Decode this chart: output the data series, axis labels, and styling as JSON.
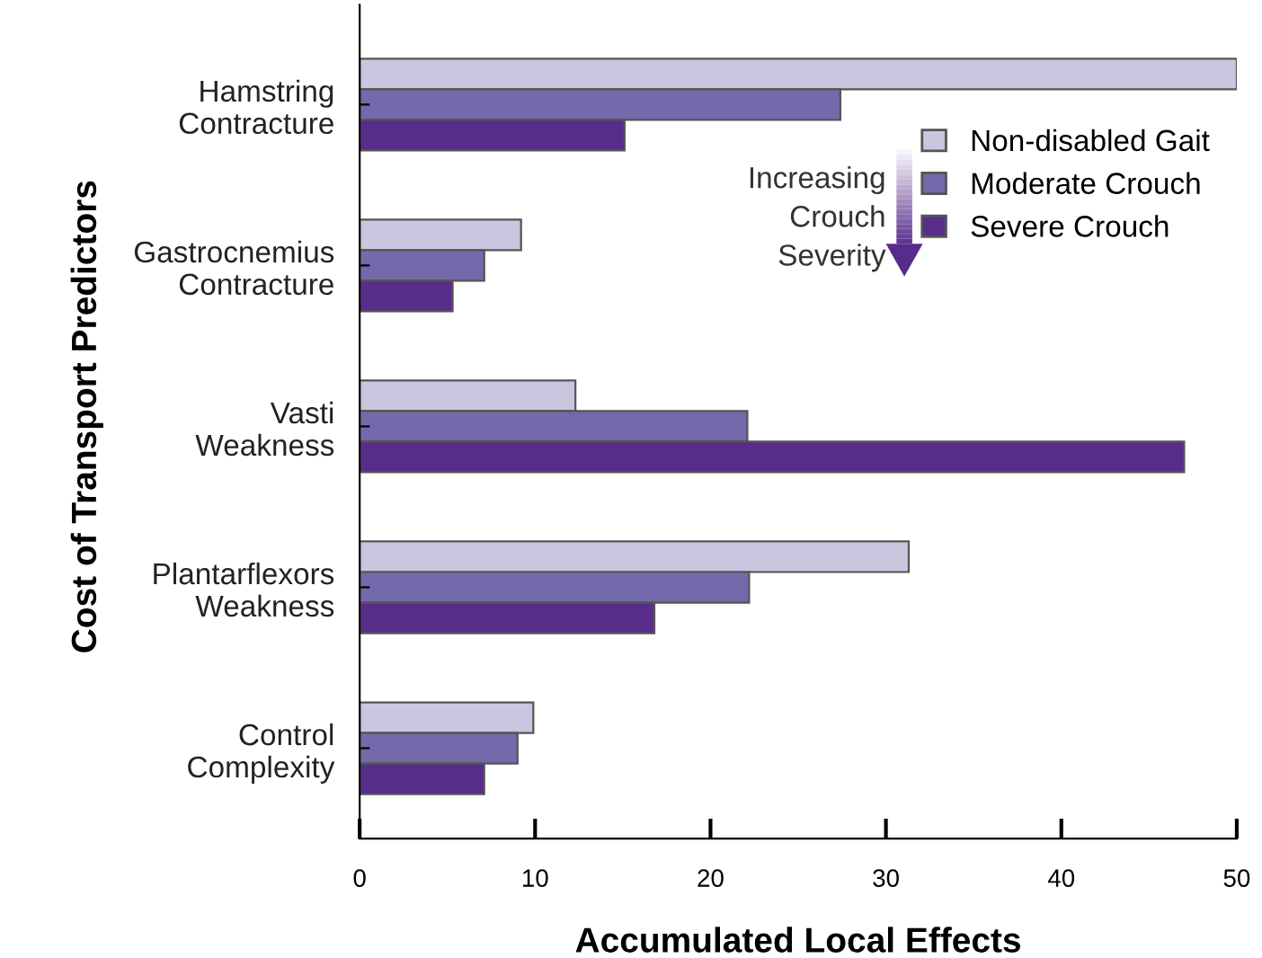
{
  "chart_data": {
    "type": "bar",
    "orientation": "horizontal",
    "xlabel": "Accumulated Local Effects",
    "ylabel": "Cost of Transport Predictors",
    "categories": [
      "Hamstring\nContracture",
      "Gastrocnemius\nContracture",
      "Vasti\nWeakness",
      "Plantarflexors\nWeakness",
      "Control\nComplexity"
    ],
    "series": [
      {
        "name": "Non-disabled Gait",
        "color": "#c9c6e0",
        "values": [
          50,
          9.2,
          12.3,
          31.3,
          9.9
        ]
      },
      {
        "name": "Moderate Crouch",
        "color": "#7469ab",
        "values": [
          27.4,
          7.1,
          22.1,
          22.2,
          9.0
        ]
      },
      {
        "name": "Severe Crouch",
        "color": "#582c8b",
        "values": [
          15.1,
          5.3,
          47.0,
          16.8,
          7.1
        ]
      }
    ],
    "xlim": [
      0,
      50
    ],
    "xticks": [
      0,
      10,
      20,
      30,
      40,
      50
    ],
    "grid": false,
    "legend": "right",
    "annotations": [
      "Increasing\nCrouch\nSeverity"
    ]
  }
}
